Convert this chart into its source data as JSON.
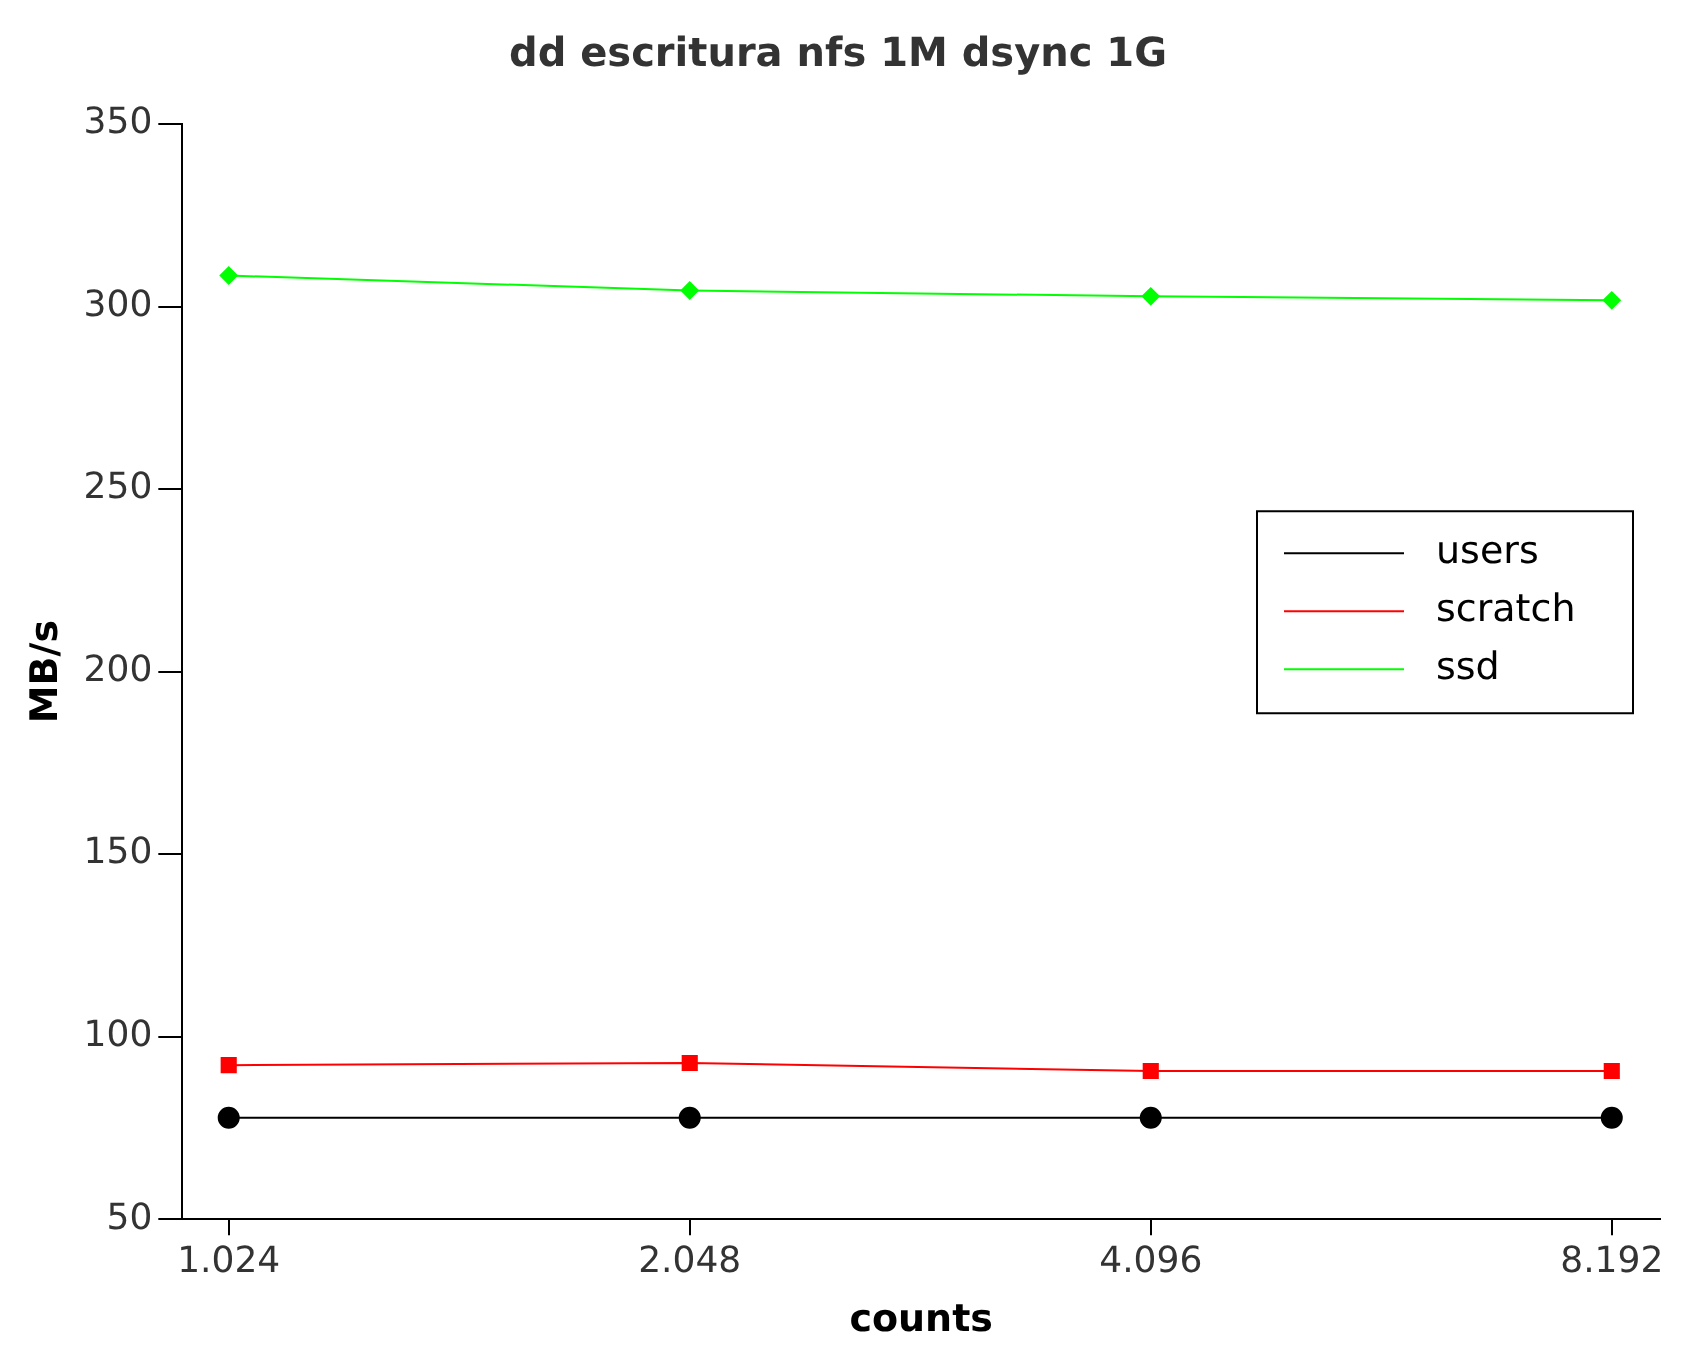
{
  "chart_data": {
    "type": "line",
    "title": "dd escritura nfs 1M dsync 1G",
    "xlabel": "counts",
    "ylabel": "MB/s",
    "x": [
      1024,
      2048,
      4096,
      8192
    ],
    "series": [
      {
        "name": "users",
        "color": "#000000",
        "marker": "circle",
        "values": [
          77.8,
          77.8,
          77.8,
          77.8
        ]
      },
      {
        "name": "scratch",
        "color": "#ff0000",
        "marker": "square",
        "values": [
          92.2,
          92.8,
          90.6,
          90.6
        ]
      },
      {
        "name": "ssd",
        "color": "#00ff00",
        "marker": "diamond",
        "values": [
          308.5,
          304.4,
          302.8,
          301.7
        ]
      }
    ],
    "log": "x",
    "xlim": [
      955,
      8808
    ],
    "xticks": [
      {
        "value": 1024,
        "label": "1.024"
      },
      {
        "value": 2048,
        "label": "2.048"
      },
      {
        "value": 4096,
        "label": "4.096"
      },
      {
        "value": 8192,
        "label": "8.192"
      }
    ],
    "ylim": [
      50,
      350
    ],
    "yticks": [
      50,
      100,
      150,
      200,
      250,
      300,
      350
    ],
    "grid": false,
    "legend": "right"
  }
}
